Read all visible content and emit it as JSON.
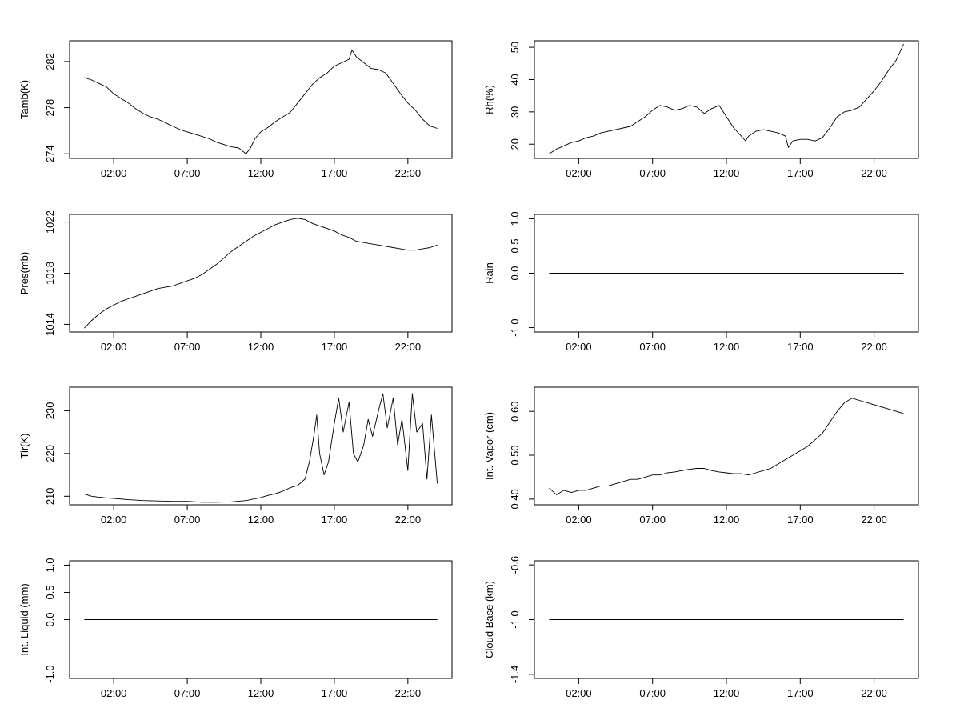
{
  "figure": {
    "x_tick_labels": [
      "02:00",
      "07:00",
      "12:00",
      "17:00",
      "22:00"
    ]
  },
  "chart_data": [
    {
      "type": "line",
      "ylabel": "Tamb(K)",
      "x_ticks": [
        2,
        7,
        12,
        17,
        22
      ],
      "xlim": [
        -1,
        25
      ],
      "yticks": [
        274,
        278,
        282
      ],
      "ylim": [
        273.6,
        283.8
      ],
      "grid": false,
      "series": [
        {
          "x": [
            0,
            0.5,
            1,
            1.5,
            2,
            2.5,
            3,
            3.5,
            4,
            4.5,
            5,
            5.5,
            6,
            6.5,
            7,
            7.5,
            8,
            8.5,
            9,
            9.5,
            10,
            10.5,
            10.8,
            11,
            11.3,
            11.6,
            12,
            12.5,
            13,
            13.5,
            14,
            14.5,
            15,
            15.5,
            16,
            16.5,
            17,
            17.5,
            18,
            18.2,
            18.5,
            19,
            19.5,
            20,
            20.5,
            21,
            21.5,
            22,
            22.5,
            23,
            23.5,
            24
          ],
          "y": [
            280.6,
            280.4,
            280.1,
            279.8,
            279.2,
            278.8,
            278.4,
            277.9,
            277.5,
            277.2,
            277.0,
            276.7,
            276.4,
            276.1,
            275.9,
            275.7,
            275.5,
            275.3,
            275.0,
            274.8,
            274.6,
            274.5,
            274.2,
            274.0,
            274.5,
            275.3,
            275.9,
            276.3,
            276.8,
            277.2,
            277.6,
            278.4,
            279.2,
            280.0,
            280.6,
            281.0,
            281.6,
            281.9,
            282.2,
            283.0,
            282.4,
            281.9,
            281.4,
            281.3,
            281.0,
            280.1,
            279.2,
            278.4,
            277.8,
            277.0,
            276.4,
            276.2
          ]
        }
      ]
    },
    {
      "type": "line",
      "ylabel": "Rh(%)",
      "x_ticks": [
        2,
        7,
        12,
        17,
        22
      ],
      "xlim": [
        -1,
        25
      ],
      "yticks": [
        20,
        30,
        40,
        50
      ],
      "ylim": [
        15.6,
        52
      ],
      "grid": false,
      "series": [
        {
          "x": [
            0,
            0.5,
            1,
            1.5,
            2,
            2.5,
            3,
            3.5,
            4,
            4.5,
            5,
            5.5,
            6,
            6.5,
            7,
            7.5,
            8,
            8.5,
            9,
            9.5,
            10,
            10.5,
            11,
            11.5,
            12,
            12.5,
            13,
            13.3,
            13.5,
            14,
            14.5,
            15,
            15.5,
            16,
            16.2,
            16.5,
            17,
            17.5,
            18,
            18.5,
            19,
            19.5,
            20,
            20.5,
            21,
            21.5,
            22,
            22.5,
            23,
            23.5,
            24
          ],
          "y": [
            17.0,
            18.5,
            19.5,
            20.5,
            21.0,
            22.0,
            22.5,
            23.5,
            24.0,
            24.5,
            25.0,
            25.5,
            27.0,
            28.5,
            30.5,
            32.0,
            31.5,
            30.5,
            31.0,
            32.0,
            31.5,
            29.5,
            31.0,
            32.0,
            28.5,
            25.0,
            22.5,
            21.0,
            22.5,
            24.0,
            24.5,
            24.0,
            23.5,
            22.5,
            19.0,
            21.0,
            21.5,
            21.5,
            21.0,
            22.0,
            25.0,
            28.5,
            30.0,
            30.5,
            31.5,
            34.0,
            36.5,
            39.5,
            43.0,
            46.0,
            51.0
          ]
        }
      ]
    },
    {
      "type": "line",
      "ylabel": "Pres(mb)",
      "x_ticks": [
        2,
        7,
        12,
        17,
        22
      ],
      "xlim": [
        -1,
        25
      ],
      "yticks": [
        1014,
        1018,
        1022
      ],
      "ylim": [
        1013.4,
        1022.6
      ],
      "grid": false,
      "series": [
        {
          "x": [
            0,
            0.5,
            1,
            1.5,
            2,
            2.5,
            3,
            3.5,
            4,
            4.5,
            5,
            5.5,
            6,
            6.5,
            7,
            7.5,
            8,
            8.5,
            9,
            9.5,
            10,
            10.5,
            11,
            11.5,
            12,
            12.5,
            13,
            13.5,
            14,
            14.5,
            15,
            15.5,
            16,
            16.5,
            17,
            17.5,
            18,
            18.5,
            19,
            19.5,
            20,
            20.5,
            21,
            21.5,
            22,
            22.5,
            23,
            23.5,
            24
          ],
          "y": [
            1013.7,
            1014.3,
            1014.8,
            1015.2,
            1015.5,
            1015.8,
            1016.0,
            1016.2,
            1016.4,
            1016.6,
            1016.8,
            1016.9,
            1017.0,
            1017.2,
            1017.4,
            1017.6,
            1017.9,
            1018.3,
            1018.7,
            1019.2,
            1019.7,
            1020.1,
            1020.5,
            1020.9,
            1021.2,
            1021.5,
            1021.8,
            1022.0,
            1022.2,
            1022.3,
            1022.2,
            1021.9,
            1021.7,
            1021.5,
            1021.3,
            1021.0,
            1020.8,
            1020.5,
            1020.4,
            1020.3,
            1020.2,
            1020.1,
            1020.0,
            1019.9,
            1019.8,
            1019.8,
            1019.9,
            1020.0,
            1020.2
          ]
        }
      ]
    },
    {
      "type": "line",
      "ylabel": "Rain",
      "x_ticks": [
        2,
        7,
        12,
        17,
        22
      ],
      "xlim": [
        -1,
        25
      ],
      "yticks": [
        -1.0,
        0.0,
        0.5,
        1.0
      ],
      "ytick_labels": [
        "-1.0",
        "0.0",
        "0.5",
        "1.0"
      ],
      "ylim": [
        -1.08,
        1.08
      ],
      "grid": false,
      "series": [
        {
          "x": [
            0,
            24
          ],
          "y": [
            0,
            0
          ]
        }
      ]
    },
    {
      "type": "line",
      "ylabel": "Tir(K)",
      "x_ticks": [
        2,
        7,
        12,
        17,
        22
      ],
      "xlim": [
        -1,
        25
      ],
      "yticks": [
        210,
        220,
        230
      ],
      "ylim": [
        208,
        235.5
      ],
      "grid": false,
      "series": [
        {
          "x": [
            0,
            0.5,
            1,
            1.5,
            2,
            3,
            4,
            5,
            6,
            7,
            8,
            9,
            10,
            11,
            12,
            12.5,
            13,
            13.5,
            14,
            14.5,
            15,
            15.3,
            15.6,
            15.8,
            16,
            16.3,
            16.6,
            17,
            17.3,
            17.6,
            18,
            18.3,
            18.6,
            19,
            19.3,
            19.6,
            20,
            20.3,
            20.6,
            21,
            21.3,
            21.6,
            22,
            22.3,
            22.6,
            23,
            23.3,
            23.6,
            24
          ],
          "y": [
            210.5,
            210.0,
            209.8,
            209.6,
            209.5,
            209.2,
            209.0,
            208.9,
            208.8,
            208.8,
            208.6,
            208.6,
            208.7,
            209.0,
            209.7,
            210.2,
            210.6,
            211.2,
            212.0,
            212.5,
            214.0,
            218.0,
            224.0,
            229.0,
            220.0,
            215.0,
            218.0,
            227.0,
            233.0,
            225.0,
            232.0,
            220.0,
            218.0,
            222.0,
            228.0,
            224.0,
            230.0,
            234.0,
            226.0,
            233.0,
            222.0,
            228.0,
            216.0,
            234.0,
            225.0,
            227.0,
            214.0,
            229.0,
            213.0
          ]
        }
      ]
    },
    {
      "type": "line",
      "ylabel": "Int. Vapor (cm)",
      "x_ticks": [
        2,
        7,
        12,
        17,
        22
      ],
      "xlim": [
        -1,
        25
      ],
      "yticks": [
        0.4,
        0.5,
        0.6
      ],
      "ytick_labels": [
        "0.40",
        "0.50",
        "0.60"
      ],
      "ylim": [
        0.387,
        0.655
      ],
      "grid": false,
      "series": [
        {
          "x": [
            0,
            0.5,
            1,
            1.5,
            2,
            2.5,
            3,
            3.5,
            4,
            4.5,
            5,
            5.5,
            6,
            6.5,
            7,
            7.5,
            8,
            8.5,
            9,
            9.5,
            10,
            10.5,
            11,
            11.5,
            12,
            12.5,
            13,
            13.5,
            14,
            14.5,
            15,
            15.5,
            16,
            16.5,
            17,
            17.5,
            18,
            18.5,
            19,
            19.5,
            20,
            20.5,
            21,
            21.5,
            22,
            22.5,
            23,
            23.5,
            24
          ],
          "y": [
            0.425,
            0.41,
            0.42,
            0.415,
            0.42,
            0.42,
            0.425,
            0.43,
            0.43,
            0.435,
            0.44,
            0.445,
            0.445,
            0.45,
            0.455,
            0.455,
            0.46,
            0.462,
            0.465,
            0.468,
            0.47,
            0.47,
            0.465,
            0.462,
            0.46,
            0.458,
            0.458,
            0.455,
            0.46,
            0.465,
            0.47,
            0.48,
            0.49,
            0.5,
            0.51,
            0.52,
            0.535,
            0.55,
            0.575,
            0.6,
            0.62,
            0.63,
            0.625,
            0.62,
            0.615,
            0.61,
            0.605,
            0.6,
            0.595
          ]
        }
      ]
    },
    {
      "type": "line",
      "ylabel": "Int. Liquid (mm)",
      "x_ticks": [
        2,
        7,
        12,
        17,
        22
      ],
      "xlim": [
        -1,
        25
      ],
      "yticks": [
        -1.0,
        0.0,
        0.5,
        1.0
      ],
      "ytick_labels": [
        "-1.0",
        "0.0",
        "0.5",
        "1.0"
      ],
      "ylim": [
        -1.08,
        1.08
      ],
      "grid": false,
      "series": [
        {
          "x": [
            0,
            24
          ],
          "y": [
            0,
            0
          ]
        }
      ]
    },
    {
      "type": "line",
      "ylabel": "Cloud Base (km)",
      "x_ticks": [
        2,
        7,
        12,
        17,
        22
      ],
      "xlim": [
        -1,
        25
      ],
      "yticks": [
        -1.4,
        -1.0,
        -0.6
      ],
      "ytick_labels": [
        "-1.4",
        "-1.0",
        "-0.6"
      ],
      "ylim": [
        -1.43,
        -0.57
      ],
      "grid": false,
      "series": [
        {
          "x": [
            0,
            24
          ],
          "y": [
            -1,
            -1
          ]
        }
      ]
    }
  ]
}
